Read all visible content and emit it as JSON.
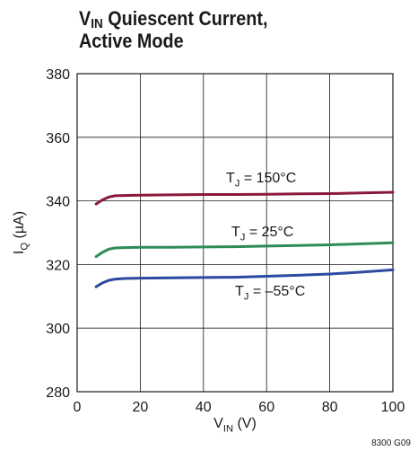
{
  "chart_data": {
    "type": "line",
    "title_parts": {
      "main": "V",
      "main_sub": "IN",
      "main_rest": " Quiescent Current,",
      "line2": "Active Mode"
    },
    "xlabel": {
      "main": "V",
      "sub": "IN",
      "rest": " (V)"
    },
    "ylabel": {
      "main": "I",
      "sub": "Q",
      "rest": " (µA)"
    },
    "xlim": [
      0,
      100
    ],
    "ylim": [
      280,
      380
    ],
    "x_ticks": [
      0,
      20,
      40,
      60,
      80,
      100
    ],
    "y_ticks": [
      280,
      300,
      320,
      340,
      360,
      380
    ],
    "grid": true,
    "footnote": "8300 G09",
    "series": [
      {
        "name": "T_J = 150°C",
        "label": {
          "main": "T",
          "sub": "J",
          "rest": " = 150°C"
        },
        "color": "#8b1a3a",
        "x": [
          6,
          8,
          10,
          12,
          15,
          20,
          30,
          40,
          50,
          60,
          70,
          80,
          90,
          100
        ],
        "y": [
          339.0,
          340.3,
          341.2,
          341.6,
          341.7,
          341.8,
          341.9,
          342.0,
          342.0,
          342.1,
          342.2,
          342.3,
          342.5,
          342.7
        ]
      },
      {
        "name": "T_J = 25°C",
        "label": {
          "main": "T",
          "sub": "J",
          "rest": " = 25°C"
        },
        "color": "#2e8b57",
        "x": [
          6,
          8,
          10,
          12,
          15,
          20,
          30,
          40,
          50,
          60,
          70,
          80,
          90,
          100
        ],
        "y": [
          322.5,
          323.8,
          324.8,
          325.2,
          325.3,
          325.4,
          325.4,
          325.5,
          325.6,
          325.8,
          326.0,
          326.2,
          326.5,
          326.8
        ]
      },
      {
        "name": "T_J = –55°C",
        "label": {
          "main": "T",
          "sub": "J",
          "rest": " = –55°C"
        },
        "color": "#2b4aa0",
        "x": [
          6,
          8,
          10,
          12,
          15,
          20,
          30,
          40,
          50,
          60,
          70,
          80,
          90,
          100
        ],
        "y": [
          313.0,
          314.2,
          315.0,
          315.4,
          315.6,
          315.7,
          315.8,
          315.9,
          316.0,
          316.3,
          316.6,
          317.0,
          317.6,
          318.3
        ]
      }
    ]
  }
}
